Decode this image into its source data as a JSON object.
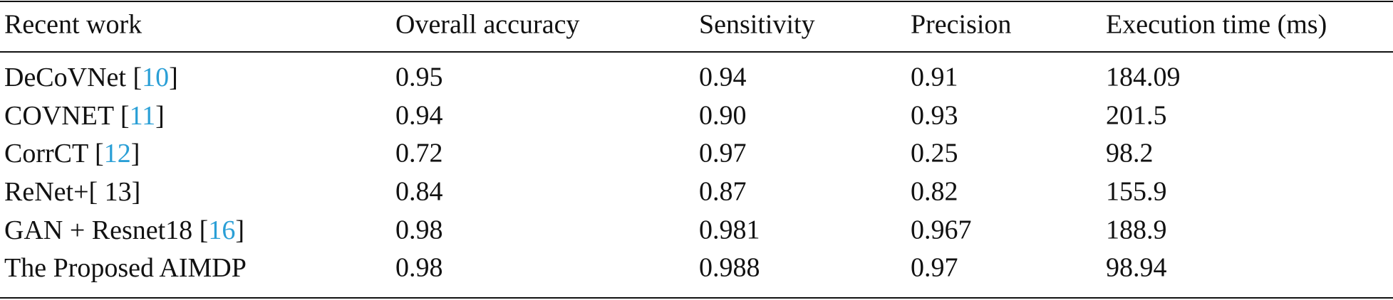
{
  "table": {
    "header": [
      "Recent work",
      "Overall accuracy",
      "Sensitivity",
      "Precision",
      "Execution time (ms)"
    ],
    "rows": [
      {
        "work": [
          {
            "text": "DeCoVNet ["
          },
          {
            "text": "10",
            "link": true
          },
          {
            "text": "]"
          }
        ],
        "cells": [
          "0.95",
          "0.94",
          "0.91",
          "184.09"
        ]
      },
      {
        "work": [
          {
            "text": "COVNET ["
          },
          {
            "text": "11",
            "link": true
          },
          {
            "text": "]"
          }
        ],
        "cells": [
          "0.94",
          "0.90",
          "0.93",
          "201.5"
        ]
      },
      {
        "work": [
          {
            "text": "CorrCT ["
          },
          {
            "text": "12",
            "link": true
          },
          {
            "text": "]"
          }
        ],
        "cells": [
          "0.72",
          "0.97",
          "0.25",
          "98.2"
        ]
      },
      {
        "work": [
          {
            "text": "ReNet+[ 13]"
          }
        ],
        "cells": [
          "0.84",
          "0.87",
          "0.82",
          "155.9"
        ]
      },
      {
        "work": [
          {
            "text": "GAN + Resnet18 ["
          },
          {
            "text": "16",
            "link": true
          },
          {
            "text": "]"
          }
        ],
        "cells": [
          "0.98",
          "0.981",
          "0.967",
          "188.9"
        ]
      },
      {
        "work": [
          {
            "text": "The Proposed AIMDP"
          }
        ],
        "cells": [
          "0.98",
          "0.988",
          "0.97",
          "98.94"
        ]
      }
    ]
  }
}
